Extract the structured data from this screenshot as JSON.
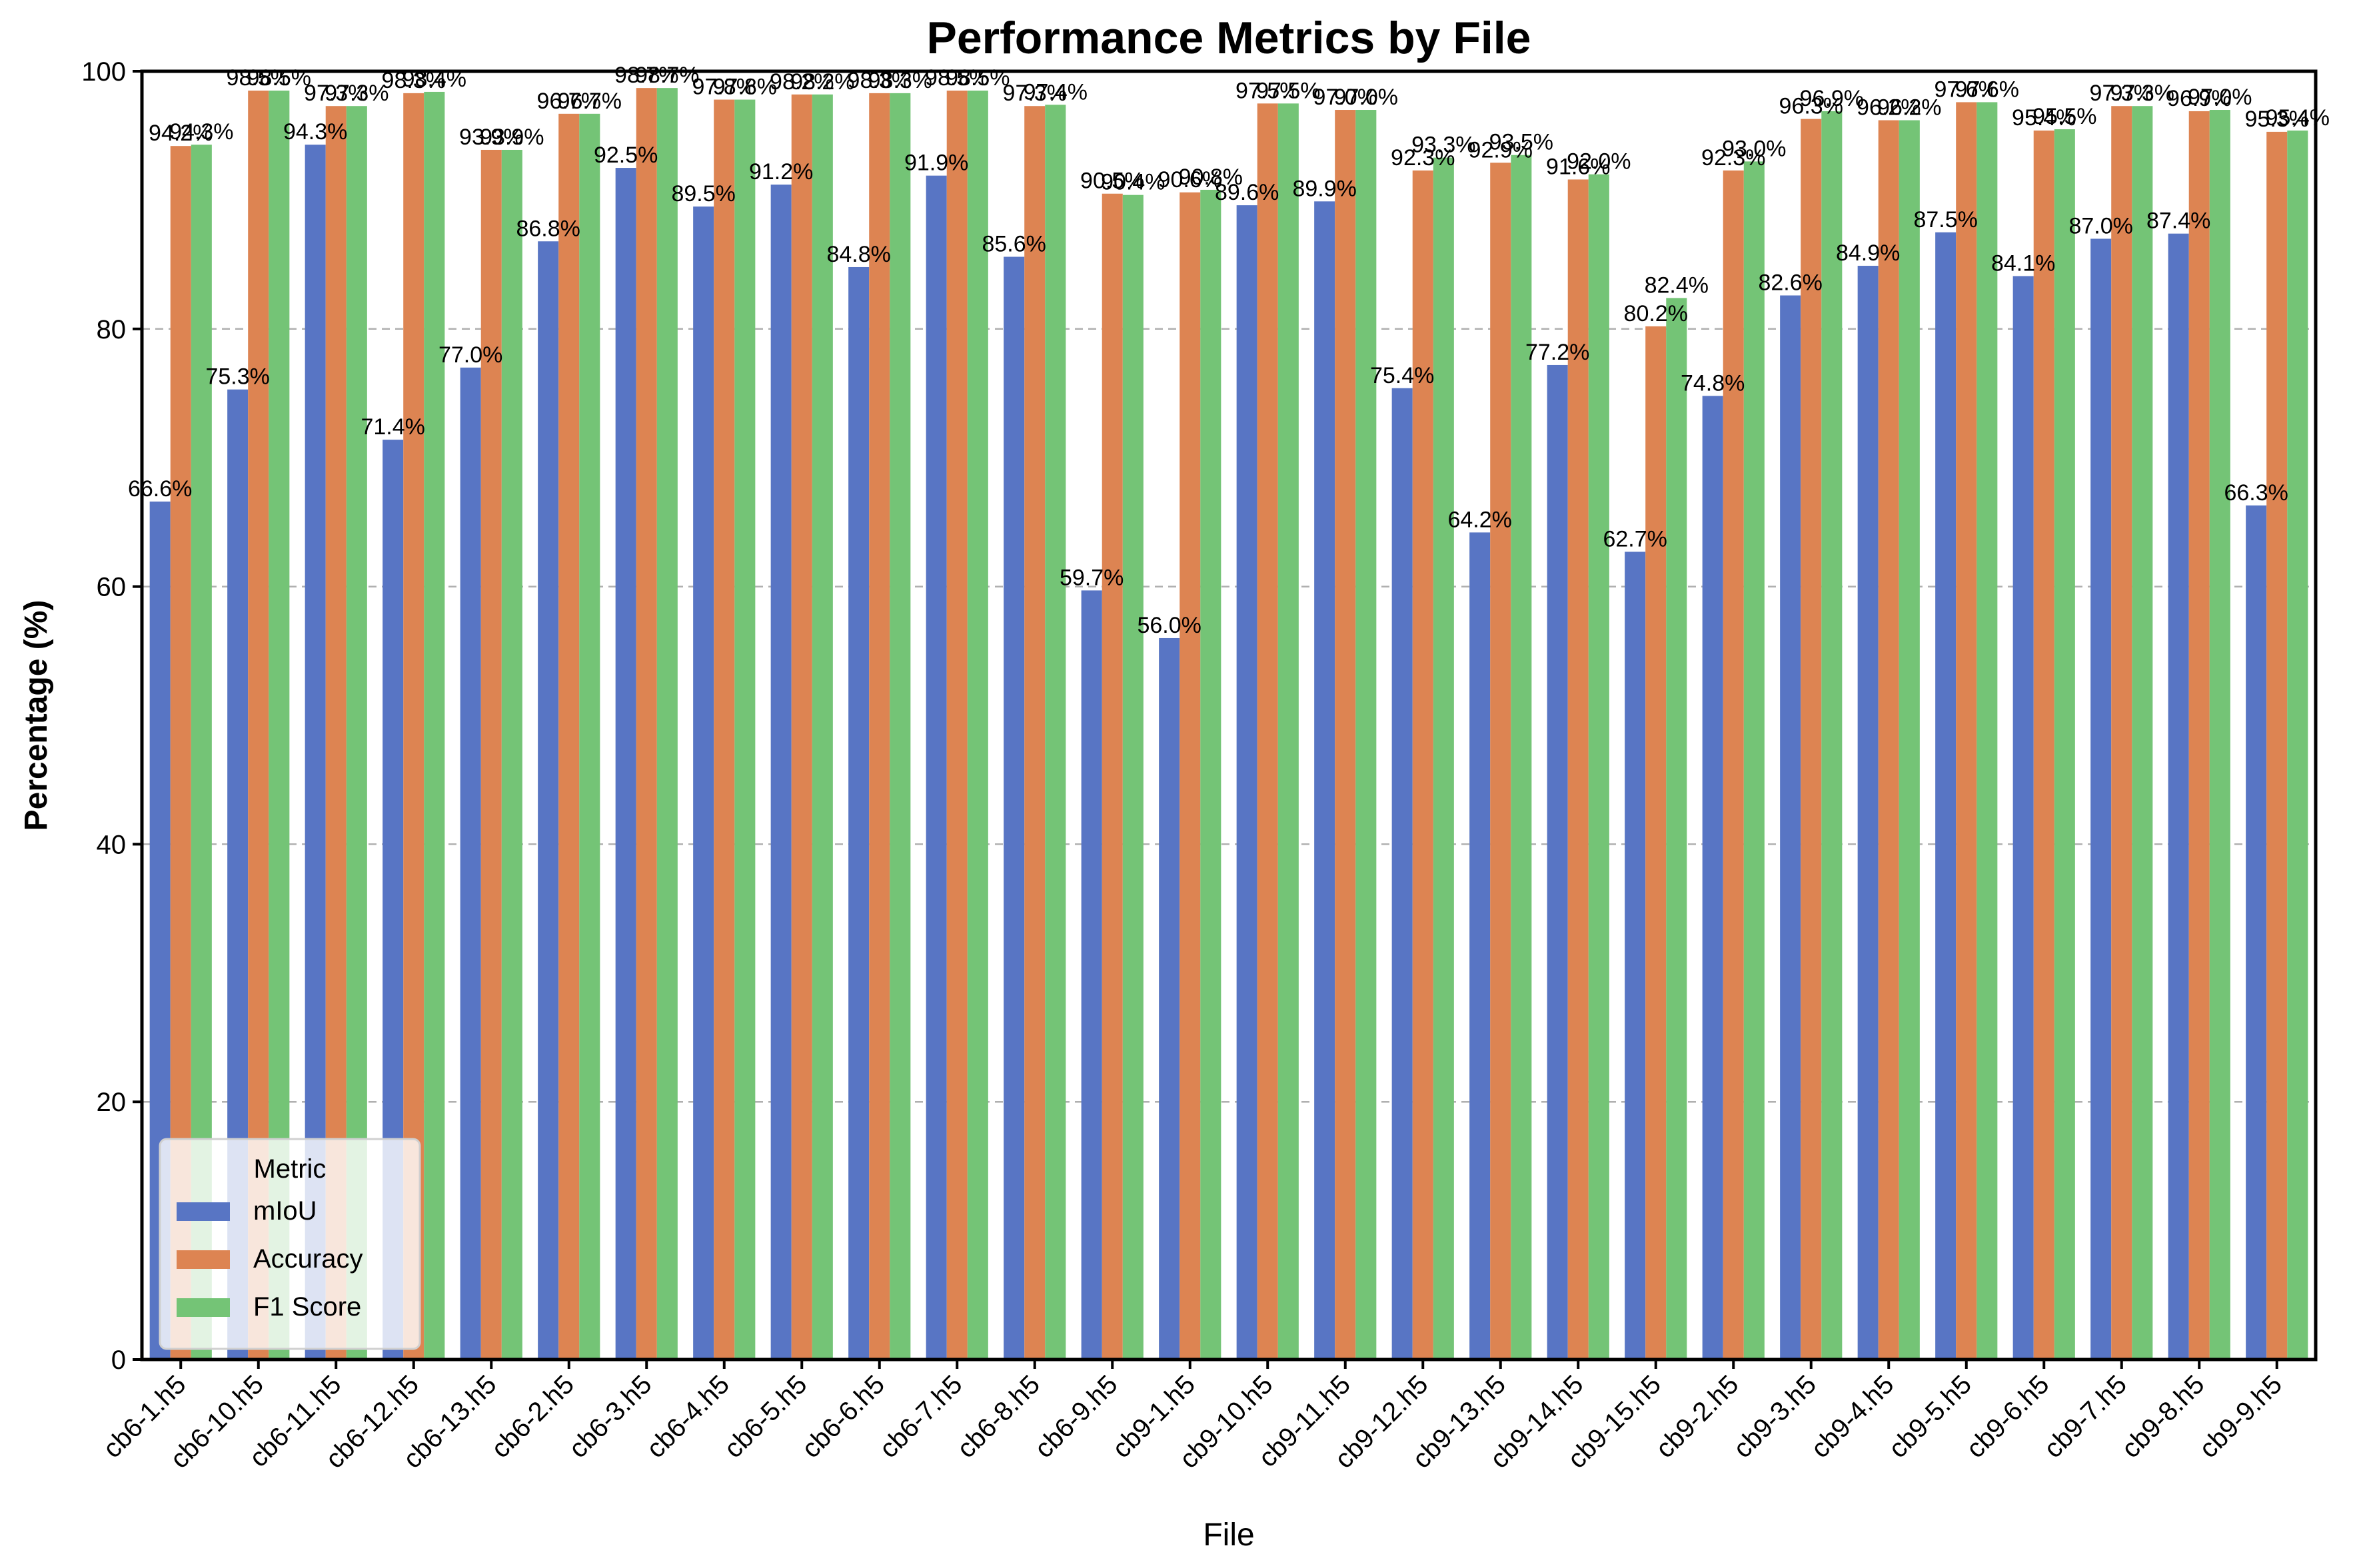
{
  "chart_data": {
    "type": "bar",
    "title": "Performance Metrics by File",
    "xlabel": "File",
    "ylabel": "Percentage (%)",
    "ylim": [
      0,
      100
    ],
    "yticks": [
      0,
      20,
      40,
      60,
      80,
      100
    ],
    "grid": "y-dashed",
    "legend": {
      "title": "Metric",
      "placement": "lower-left"
    },
    "categories": [
      "cb6-1.h5",
      "cb6-10.h5",
      "cb6-11.h5",
      "cb6-12.h5",
      "cb6-13.h5",
      "cb6-2.h5",
      "cb6-3.h5",
      "cb6-4.h5",
      "cb6-5.h5",
      "cb6-6.h5",
      "cb6-7.h5",
      "cb6-8.h5",
      "cb6-9.h5",
      "cb9-1.h5",
      "cb9-10.h5",
      "cb9-11.h5",
      "cb9-12.h5",
      "cb9-13.h5",
      "cb9-14.h5",
      "cb9-15.h5",
      "cb9-2.h5",
      "cb9-3.h5",
      "cb9-4.h5",
      "cb9-5.h5",
      "cb9-6.h5",
      "cb9-7.h5",
      "cb9-8.h5",
      "cb9-9.h5"
    ],
    "series": [
      {
        "name": "mIoU",
        "color": "#5875c4",
        "values": [
          66.6,
          75.3,
          94.3,
          71.4,
          77.0,
          86.8,
          92.5,
          89.5,
          91.2,
          84.8,
          91.9,
          85.6,
          59.7,
          56.0,
          89.6,
          89.9,
          75.4,
          64.2,
          77.2,
          62.7,
          74.8,
          82.6,
          84.9,
          87.5,
          84.1,
          87.0,
          87.4,
          66.3
        ]
      },
      {
        "name": "Accuracy",
        "color": "#dd8452",
        "values": [
          94.2,
          98.5,
          97.3,
          98.3,
          93.9,
          96.7,
          98.7,
          97.8,
          98.2,
          98.3,
          98.5,
          97.3,
          90.5,
          90.6,
          97.5,
          97.0,
          92.3,
          92.9,
          91.6,
          80.2,
          92.3,
          96.3,
          96.2,
          97.6,
          95.4,
          97.3,
          96.9,
          95.3
        ]
      },
      {
        "name": "F1 Score",
        "color": "#74c476",
        "values": [
          94.3,
          98.5,
          97.3,
          98.4,
          93.9,
          96.7,
          98.7,
          97.8,
          98.2,
          98.3,
          98.5,
          97.4,
          90.4,
          90.8,
          97.5,
          97.0,
          93.3,
          93.5,
          92.0,
          82.4,
          93.0,
          96.9,
          96.2,
          97.6,
          95.5,
          97.3,
          97.0,
          95.4
        ]
      }
    ]
  }
}
